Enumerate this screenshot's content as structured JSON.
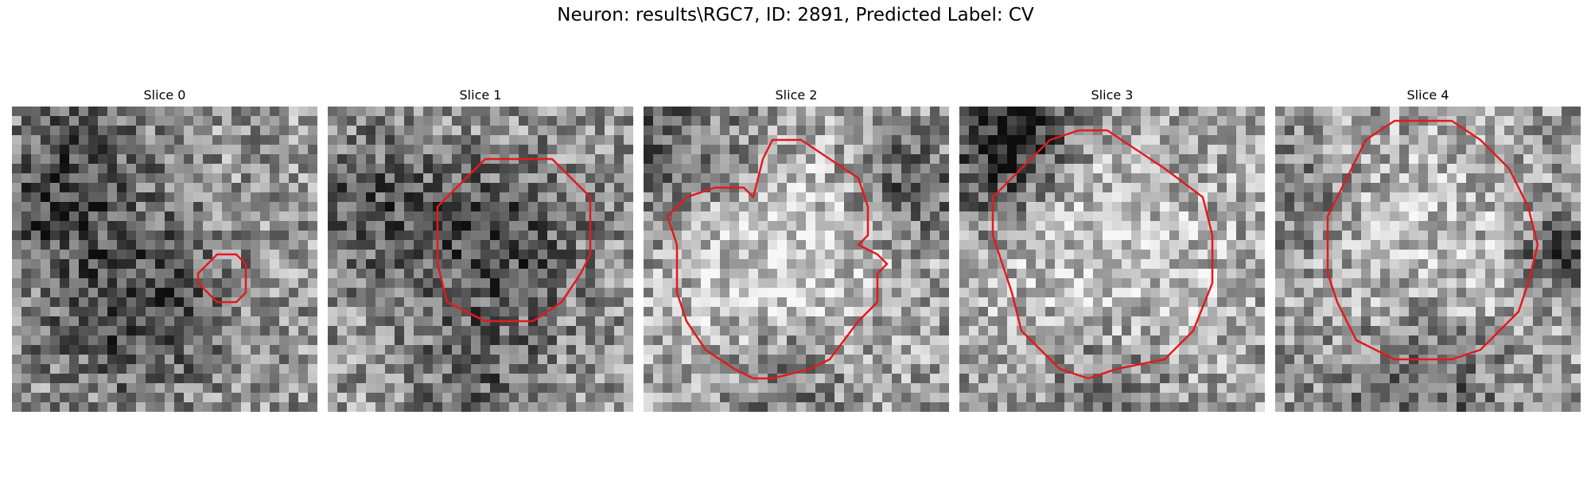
{
  "figure": {
    "title": "Neuron: results\\RGC7, ID: 2891, Predicted Label: CV"
  },
  "slices": [
    {
      "title": "Slice 0",
      "seed": 11,
      "contour_color": "#e31a1c",
      "contour": [
        [
          19.5,
          17.5
        ],
        [
          21.5,
          15.5
        ],
        [
          23.5,
          15.5
        ],
        [
          24.5,
          16.5
        ],
        [
          24.5,
          19.5
        ],
        [
          23.5,
          20.5
        ],
        [
          21.5,
          20.5
        ],
        [
          19.5,
          18.5
        ]
      ],
      "dark_blobs": [
        [
          12,
          20,
          7,
          0.35
        ],
        [
          7,
          4,
          5,
          0.25
        ],
        [
          3,
          10,
          4,
          0.2
        ]
      ]
    },
    {
      "title": "Slice 1",
      "seed": 23,
      "contour_color": "#e31a1c",
      "contour": [
        [
          18.5,
          5.5
        ],
        [
          23.5,
          5.5
        ],
        [
          27.5,
          9.5
        ],
        [
          27.5,
          15.5
        ],
        [
          26.5,
          17.5
        ],
        [
          24.5,
          20.5
        ],
        [
          21.5,
          22.5
        ],
        [
          16.5,
          22.5
        ],
        [
          12.5,
          20.5
        ],
        [
          11.5,
          16.5
        ],
        [
          11.5,
          10.5
        ],
        [
          13.5,
          8.5
        ],
        [
          16.5,
          5.5
        ]
      ],
      "dark_blobs": [
        [
          18,
          14,
          6,
          0.3
        ],
        [
          4,
          10,
          6,
          0.25
        ],
        [
          15,
          28,
          5,
          0.2
        ]
      ]
    },
    {
      "title": "Slice 2",
      "seed": 37,
      "contour_color": "#e31a1c",
      "contour": [
        [
          13.5,
          3.5
        ],
        [
          16.5,
          3.5
        ],
        [
          19.5,
          5.5
        ],
        [
          22.5,
          7.5
        ],
        [
          23.5,
          10.5
        ],
        [
          23.5,
          13.5
        ],
        [
          22.5,
          14.5
        ],
        [
          24.5,
          15.5
        ],
        [
          25.5,
          16.5
        ],
        [
          24.5,
          17.5
        ],
        [
          24.5,
          20.5
        ],
        [
          22.5,
          22.5
        ],
        [
          19.5,
          26.5
        ],
        [
          17.5,
          27.5
        ],
        [
          13.5,
          28.5
        ],
        [
          11.5,
          28.5
        ],
        [
          9.5,
          27.5
        ],
        [
          6.5,
          25.5
        ],
        [
          4.5,
          22.5
        ],
        [
          3.5,
          19.5
        ],
        [
          3.5,
          14.5
        ],
        [
          2.5,
          11.5
        ],
        [
          4.5,
          9.5
        ],
        [
          7.5,
          8.5
        ],
        [
          10.5,
          8.5
        ],
        [
          11.5,
          9.5
        ],
        [
          12.5,
          5.5
        ]
      ],
      "dark_blobs": [
        [
          2,
          4,
          6,
          0.25
        ],
        [
          27,
          8,
          4,
          0.3
        ],
        [
          15,
          28,
          5,
          0.2
        ]
      ],
      "bright_center": [
        14,
        16,
        9,
        0.25
      ]
    },
    {
      "title": "Slice 3",
      "seed": 53,
      "contour_color": "#e31a1c",
      "contour": [
        [
          12.5,
          2.5
        ],
        [
          15.5,
          2.5
        ],
        [
          18.5,
          4.5
        ],
        [
          21.5,
          6.5
        ],
        [
          25.5,
          9.5
        ],
        [
          26.5,
          13.5
        ],
        [
          26.5,
          18.5
        ],
        [
          24.5,
          23.5
        ],
        [
          21.5,
          26.5
        ],
        [
          16.5,
          27.5
        ],
        [
          13.5,
          28.5
        ],
        [
          10.5,
          27.5
        ],
        [
          6.5,
          23.5
        ],
        [
          5.5,
          19.5
        ],
        [
          4.5,
          16.5
        ],
        [
          3.5,
          13.5
        ],
        [
          3.5,
          9.5
        ],
        [
          6.5,
          6.5
        ],
        [
          9.5,
          3.5
        ]
      ],
      "dark_blobs": [
        [
          6,
          2,
          4,
          0.45
        ],
        [
          2,
          7,
          4,
          0.25
        ],
        [
          15,
          29,
          5,
          0.2
        ]
      ],
      "bright_center": [
        15,
        16,
        10,
        0.2
      ]
    },
    {
      "title": "Slice 4",
      "seed": 71,
      "contour_color": "#e31a1c",
      "contour": [
        [
          12.5,
          1.5
        ],
        [
          18.5,
          1.5
        ],
        [
          21.5,
          3.5
        ],
        [
          24.5,
          6.5
        ],
        [
          26.5,
          10.5
        ],
        [
          27.5,
          14.5
        ],
        [
          26.5,
          18.5
        ],
        [
          25.5,
          21.5
        ],
        [
          21.5,
          25.5
        ],
        [
          18.5,
          26.5
        ],
        [
          12.5,
          26.5
        ],
        [
          8.5,
          24.5
        ],
        [
          6.5,
          20.5
        ],
        [
          5.5,
          17.5
        ],
        [
          5.5,
          11.5
        ],
        [
          7.5,
          7.5
        ],
        [
          9.5,
          3.5
        ]
      ],
      "dark_blobs": [
        [
          29,
          15,
          3,
          0.35
        ],
        [
          15,
          30,
          6,
          0.25
        ],
        [
          1,
          9,
          4,
          0.2
        ]
      ],
      "bright_center": [
        16,
        14,
        9,
        0.15
      ]
    }
  ]
}
